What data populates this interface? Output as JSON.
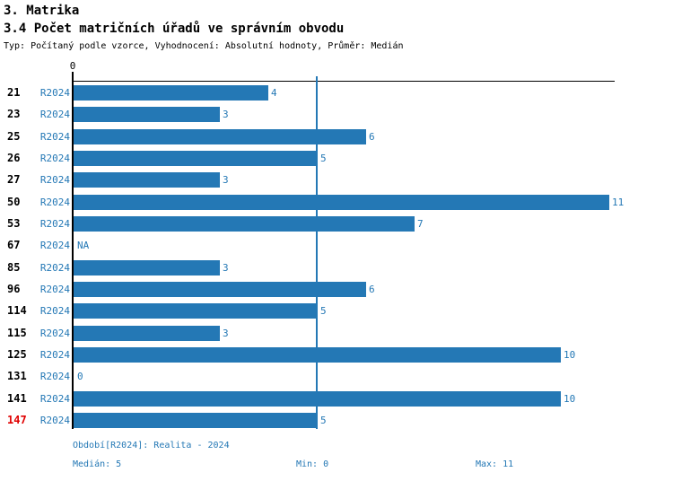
{
  "page": {
    "title": "3. Matrika",
    "subtitle": "3.4 Počet matričních úřadů ve správním obvodu",
    "meta": "Typ: Počítaný podle vzorce, Vyhodnocení: Absolutní hodnoty, Průměr: Medián"
  },
  "chart_data": {
    "type": "bar",
    "orientation": "horizontal",
    "title": "3.4 Počet matričních úřadů ve správním obvodu",
    "series_label": "R2024",
    "categories": [
      "21",
      "23",
      "25",
      "26",
      "27",
      "50",
      "53",
      "67",
      "85",
      "96",
      "114",
      "115",
      "125",
      "131",
      "141",
      "147"
    ],
    "values": [
      4,
      3,
      6,
      5,
      3,
      11,
      7,
      null,
      3,
      6,
      5,
      3,
      10,
      0,
      10,
      5
    ],
    "value_labels": [
      "4",
      "3",
      "6",
      "5",
      "3",
      "11",
      "7",
      "NA",
      "3",
      "6",
      "5",
      "3",
      "10",
      "0",
      "10",
      "5"
    ],
    "highlighted_category": "147",
    "axis": {
      "tick_label": "0",
      "min": 0,
      "max": 11,
      "median_reference_line": 5,
      "grid": false
    },
    "legend_position": "none",
    "colors": {
      "bar": "#2478b5",
      "series_text": "#2478b5",
      "category_text": "#000000",
      "highlight_text": "#e00000",
      "axis": "#000000"
    }
  },
  "footer": {
    "period": "Období[R2024]: Realita - 2024",
    "median": "Medián: 5",
    "min": "Min: 0",
    "max": "Max: 11"
  }
}
